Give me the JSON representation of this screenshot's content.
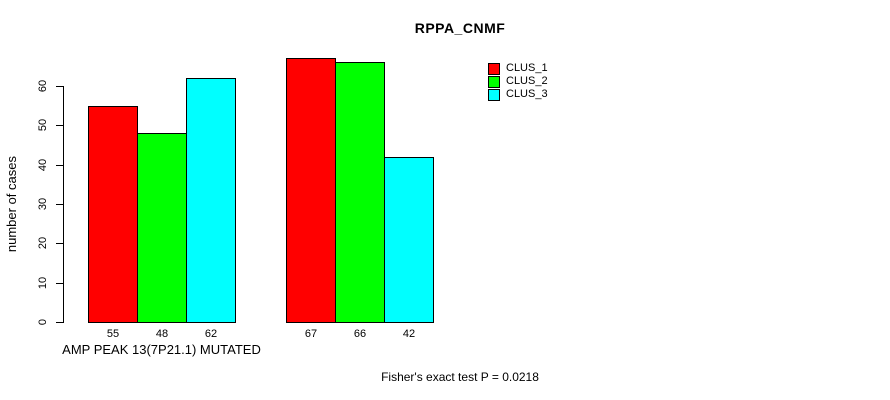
{
  "figure": {
    "background": "#FFFFFF",
    "text_color": "#000000",
    "axis_color": "#000000"
  },
  "chart_data": {
    "type": "bar",
    "title": "RPPA_CNMF",
    "ylabel": "number of cases",
    "xlabel": "",
    "ylim": [
      0,
      60
    ],
    "yticks": [
      0,
      10,
      20,
      30,
      40,
      50,
      60
    ],
    "categories": [
      "AMP PEAK 13(7P21.1) MUTATED",
      ""
    ],
    "series": [
      {
        "name": "CLUS_1",
        "color": "#FF0000",
        "values": [
          55,
          67
        ]
      },
      {
        "name": "CLUS_2",
        "color": "#00FF00",
        "values": [
          48,
          66
        ]
      },
      {
        "name": "CLUS_3",
        "color": "#00FFFF",
        "values": [
          62,
          42
        ]
      }
    ],
    "show_bar_value_labels": true,
    "annotation": "Fisher's exact test P = 0.0218",
    "legend_position": "top-right",
    "grid": false
  }
}
